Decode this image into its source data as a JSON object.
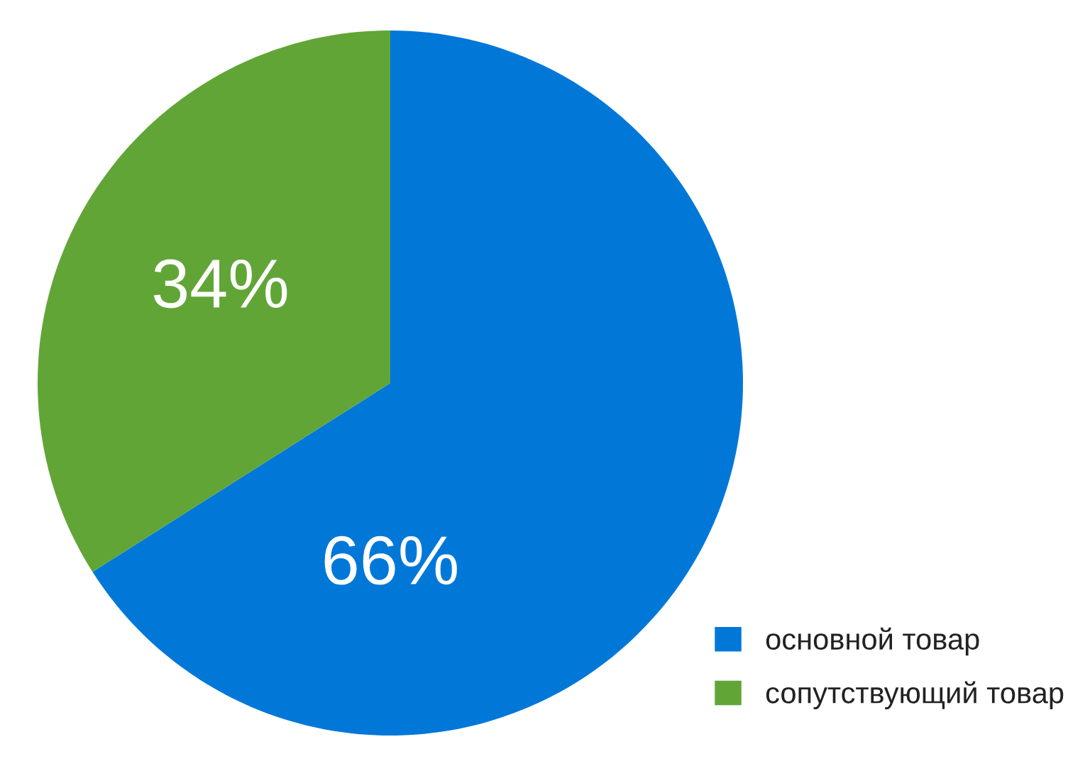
{
  "chart_data": {
    "type": "pie",
    "categories": [
      "основной товар",
      "сопутствующий товар"
    ],
    "values": [
      66,
      34
    ],
    "value_labels": [
      "66%",
      "34%"
    ],
    "colors": [
      "#0178d8",
      "#62a537"
    ],
    "legend": "bottom right"
  }
}
